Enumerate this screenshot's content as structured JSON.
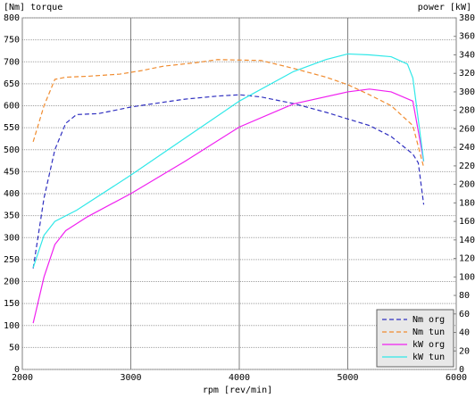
{
  "chart_data": {
    "type": "line",
    "ylabel": "[Nm]  torque",
    "y2label": "power [kW]",
    "xlabel": "rpm [rev/min]",
    "xlim": [
      2000,
      6000
    ],
    "xticks": [
      2000,
      3000,
      4000,
      5000,
      6000
    ],
    "ylim": [
      0,
      800
    ],
    "yticks": [
      0,
      50,
      100,
      150,
      200,
      250,
      300,
      350,
      400,
      450,
      500,
      550,
      600,
      650,
      700,
      750,
      800
    ],
    "y2lim": [
      0,
      380
    ],
    "y2ticks": [
      0,
      20,
      40,
      60,
      80,
      100,
      120,
      140,
      160,
      180,
      200,
      220,
      240,
      260,
      280,
      300,
      320,
      340,
      360,
      380
    ],
    "grid": true,
    "legend": "lower right",
    "series": [
      {
        "name": "Nm org",
        "color": "#3030c0",
        "style": "dashed",
        "x": [
          2100,
          2200,
          2300,
          2400,
          2500,
          2700,
          3000,
          3300,
          3500,
          3800,
          4000,
          4200,
          4500,
          4800,
          5000,
          5200,
          5400,
          5600,
          5650,
          5700
        ],
        "values": [
          230,
          390,
          500,
          560,
          580,
          582,
          597,
          608,
          615,
          622,
          625,
          620,
          605,
          585,
          570,
          555,
          530,
          490,
          470,
          375
        ]
      },
      {
        "name": "Nm tun",
        "color": "#f08c30",
        "style": "dashed",
        "x": [
          2100,
          2200,
          2300,
          2400,
          2600,
          2900,
          3100,
          3300,
          3600,
          3800,
          4000,
          4200,
          4500,
          4800,
          5000,
          5200,
          5400,
          5600,
          5700
        ],
        "values": [
          518,
          600,
          660,
          665,
          667,
          672,
          680,
          690,
          698,
          705,
          704,
          703,
          685,
          665,
          648,
          625,
          600,
          555,
          460
        ]
      },
      {
        "name": "kW org",
        "color": "#f020f0",
        "style": "solid",
        "axis": "y2",
        "x": [
          2100,
          2200,
          2300,
          2400,
          2600,
          3000,
          3500,
          4000,
          4500,
          5000,
          5200,
          5400,
          5600,
          5700
        ],
        "values": [
          50,
          100,
          135,
          150,
          165,
          190,
          225,
          262,
          287,
          300,
          303,
          300,
          290,
          225
        ]
      },
      {
        "name": "kW tun",
        "color": "#30e8e8",
        "style": "solid",
        "axis": "y2",
        "x": [
          2100,
          2200,
          2300,
          2500,
          3000,
          3500,
          4000,
          4500,
          4800,
          5000,
          5200,
          5400,
          5550,
          5600,
          5700
        ],
        "values": [
          110,
          145,
          160,
          172,
          210,
          250,
          290,
          322,
          335,
          341,
          340,
          338,
          330,
          315,
          225
        ]
      }
    ]
  }
}
